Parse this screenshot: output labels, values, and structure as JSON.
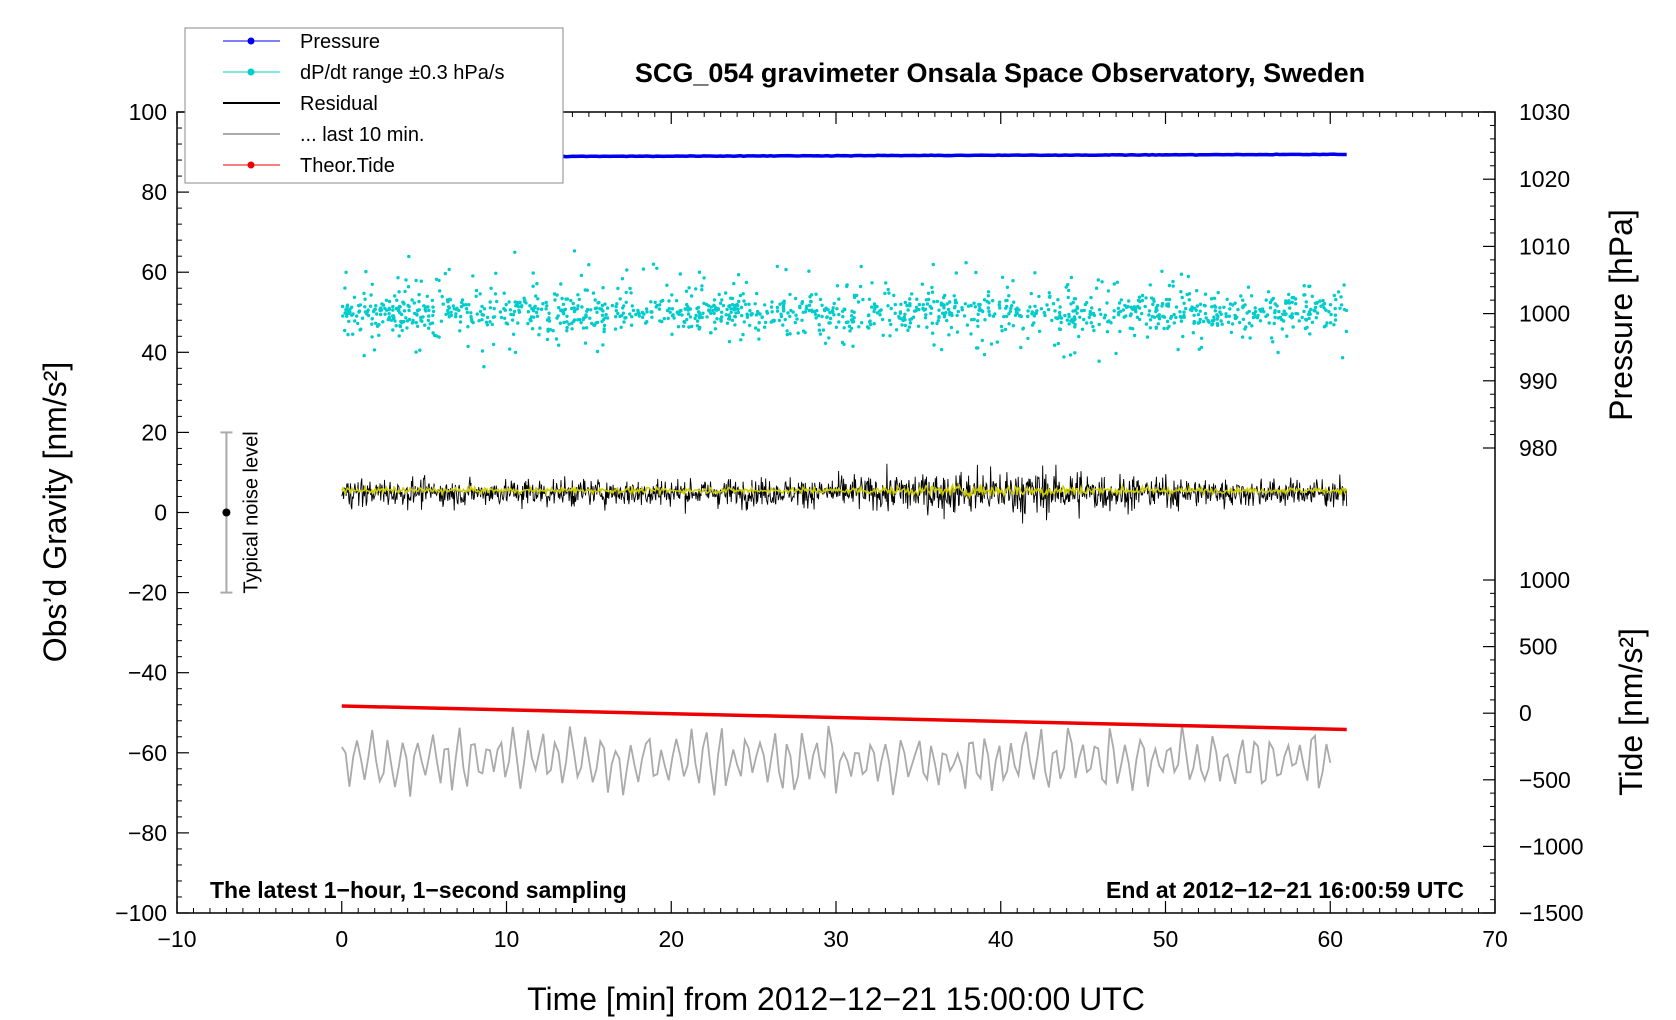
{
  "chart_data": {
    "type": "line",
    "title": "SCG_054 gravimeter Onsala Space Observatory, Sweden",
    "xlabel": "Time [min] from 2012−12−21 15:00:00 UTC",
    "ylabel_left": "Obs’d Gravity [nm/s²]",
    "ylabel_right_top": "Pressure [hPa]",
    "ylabel_right_bottom": "Tide [nm/s²]",
    "xlim": [
      -10,
      70
    ],
    "ylim": [
      -100,
      100
    ],
    "pressure_lim": [
      980,
      1030
    ],
    "tide_lim": [
      -1500,
      1000
    ],
    "x_ticks": [
      -10,
      0,
      10,
      20,
      30,
      40,
      50,
      60,
      70
    ],
    "x_tick_labels": [
      "−10",
      "0",
      "10",
      "20",
      "30",
      "40",
      "50",
      "60",
      "70"
    ],
    "y_ticks": [
      -100,
      -80,
      -60,
      -40,
      -20,
      0,
      20,
      40,
      60,
      80,
      100
    ],
    "y_tick_labels": [
      "−100",
      "−80",
      "−60",
      "−40",
      "−20",
      "0",
      "20",
      "40",
      "60",
      "80",
      "100"
    ],
    "pressure_ticks": [
      980,
      990,
      1000,
      1010,
      1020,
      1030
    ],
    "pressure_tick_labels": [
      "980",
      "990",
      "1000",
      "1010",
      "1020",
      "1030"
    ],
    "tide_ticks": [
      -1500,
      -1000,
      -500,
      0,
      500,
      1000
    ],
    "tide_tick_labels": [
      "−1500",
      "−1000",
      "−500",
      "0",
      "500",
      "1000"
    ],
    "legend": [
      {
        "label": "Pressure",
        "color": "#0000ee",
        "marker": "dot"
      },
      {
        "label": "dP/dt range ±0.3 hPa/s",
        "color": "#00cccc",
        "marker": "dot"
      },
      {
        "label": "Residual",
        "color": "#000000",
        "marker": "line"
      },
      {
        "label": "... last 10 min.",
        "color": "#aaaaaa",
        "marker": "line"
      },
      {
        "label": "Theor.Tide",
        "color": "#ee0000",
        "marker": "dot"
      }
    ],
    "series": [
      {
        "name": "Pressure",
        "axis": "pressure",
        "color": "#0000ee",
        "x": [
          0,
          61
        ],
        "values": [
          1023.3,
          1023.7
        ]
      },
      {
        "name": "Theor.Tide",
        "axis": "tide",
        "color": "#ee0000",
        "x": [
          0,
          61
        ],
        "values": [
          54,
          -122
        ]
      },
      {
        "name": "dP/dt range ±0.3 hPa/s",
        "axis": "left",
        "color": "#00cccc",
        "x": [
          0,
          61
        ],
        "center": 50,
        "spread": 8
      },
      {
        "name": "Residual",
        "axis": "left",
        "color": "#000000",
        "x": [
          0,
          61
        ],
        "center": 5,
        "spread": 7
      },
      {
        "name": "Residual (smoothed)",
        "axis": "left",
        "color": "#cccc00",
        "x": [
          0,
          61
        ],
        "center": 5.5,
        "spread": 1
      },
      {
        "name": "... last 10 min.",
        "axis": "left",
        "color": "#aaaaaa",
        "x": [
          0,
          60
        ],
        "center": -62,
        "spread": 5
      }
    ],
    "noise_level": {
      "label": "Typical noise level",
      "x": -7,
      "center": 0,
      "low": -20,
      "high": 20
    },
    "note_left": "The latest 1−hour, 1−second sampling",
    "note_right": "End at 2012−12−21 16:00:59 UTC"
  }
}
